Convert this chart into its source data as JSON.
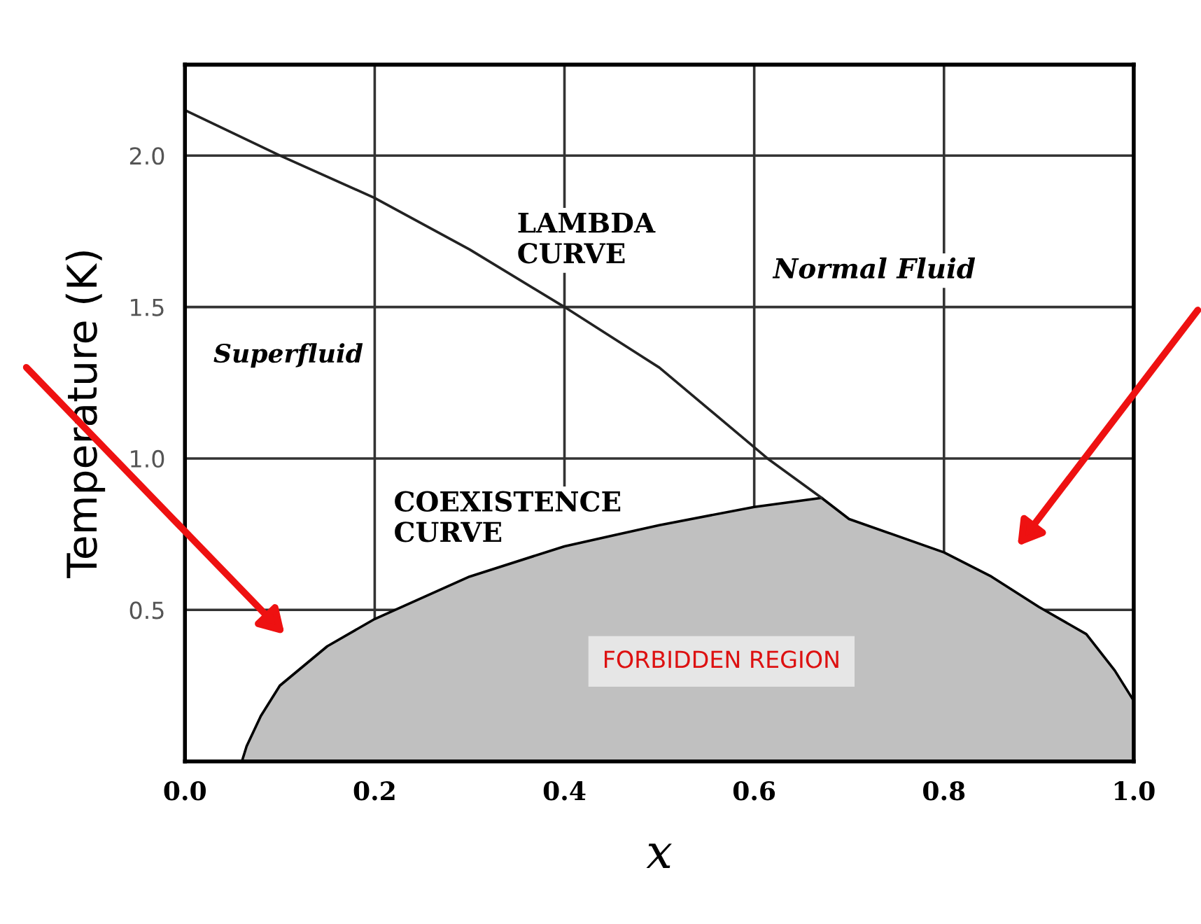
{
  "chart_data": {
    "type": "line",
    "xlabel": "x",
    "ylabel": "Temperature (K)",
    "xlim": [
      0,
      1
    ],
    "ylim": [
      0,
      2.3
    ],
    "xticks": [
      {
        "value": 0,
        "label": "0.0"
      },
      {
        "value": 0.2,
        "label": "0.2"
      },
      {
        "value": 0.4,
        "label": "0.4"
      },
      {
        "value": 0.6,
        "label": "0.6"
      },
      {
        "value": 0.8,
        "label": "0.8"
      },
      {
        "value": 1,
        "label": "1.0"
      }
    ],
    "yticks": [
      {
        "value": 0.5,
        "label": "0.5"
      },
      {
        "value": 1,
        "label": "1.0"
      },
      {
        "value": 1.5,
        "label": "1.5"
      },
      {
        "value": 2,
        "label": "2.0"
      }
    ],
    "grid": true,
    "marker": "none",
    "line_style": "solid",
    "series": [
      {
        "color": "#222222",
        "x": [
          0,
          0.1,
          0.2,
          0.3,
          0.4,
          0.5,
          0.614,
          0.671
        ],
        "values": [
          2.15,
          2.0,
          1.86,
          1.69,
          1.5,
          1.3,
          1.0,
          0.87
        ]
      },
      {
        "type": "area",
        "color": "#c0c0c0",
        "x": [
          0.06,
          0.065,
          0.08,
          0.1,
          0.15,
          0.2,
          0.3,
          0.4,
          0.5,
          0.6,
          0.671,
          0.7,
          0.8,
          0.85,
          0.9,
          0.95,
          0.98,
          1.0,
          1.0
        ],
        "values": [
          0,
          0.05,
          0.15,
          0.25,
          0.38,
          0.47,
          0.61,
          0.71,
          0.78,
          0.84,
          0.87,
          0.8,
          0.69,
          0.61,
          0.51,
          0.42,
          0.3,
          0.2,
          0
        ]
      }
    ],
    "annotations": [
      "LAMBDA\nCURVE",
      "Normal Fluid",
      "Superfluid",
      "COEXISTENCE\nCURVE",
      "FORBIDDEN REGION"
    ]
  }
}
